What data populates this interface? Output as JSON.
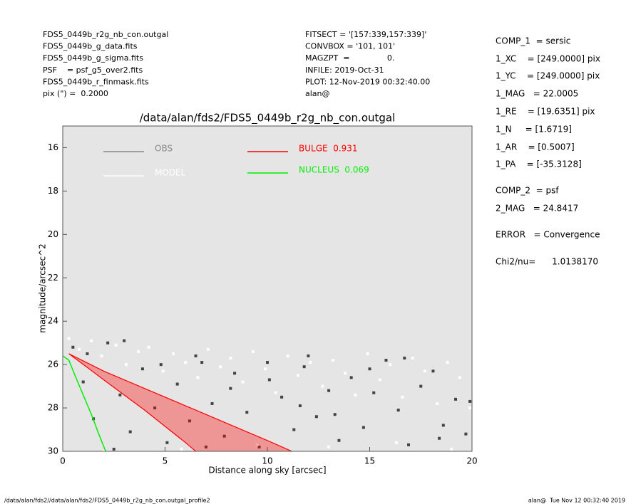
{
  "header": {
    "files": [
      "FDS5_0449b_r2g_nb_con.outgal",
      "FDS5_0449b_g_data.fits",
      "FDS5_0449b_g_sigma.fits",
      "PSF    = psf_g5_over2.fits",
      "FDS5_0449b_r_finmask.fits",
      "pix (\") =  0.2000"
    ],
    "settings": [
      "FITSECT = '[157:339,157:339]'",
      "CONVBOX = '101, 101'",
      "MAGZPT  =               0.",
      "INFILE: 2019-Oct-31",
      "PLOT: 12-Nov-2019 00:32:40.00",
      "alan@"
    ]
  },
  "fit_results": [
    "COMP_1  = sersic",
    "1_XC    = [249.0000] pix",
    "1_YC    = [249.0000] pix",
    "1_MAG   = 22.0005",
    "1_RE    = [19.6351] pix",
    "1_N     = [1.6719]",
    "1_AR    = [0.5007]",
    "1_PA    = [-35.3128]",
    "COMP_2  = psf",
    "2_MAG   = 24.8417",
    "ERROR   = Convergence",
    "Chi2/nu=      1.0138170"
  ],
  "footer": {
    "left": "/data/alan/fds2//data/alan/fds2/FDS5_0449b_r2g_nb_con.outgal_profile2",
    "right": "alan@  Tue Nov 12 00:32:40 2019"
  },
  "chart_data": {
    "type": "scatter",
    "title": "/data/alan/fds2/FDS5_0449b_r2g_nb_con.outgal",
    "x_label": "Distance along sky [arcsec]",
    "y_label": "magnitude/arcsec^2",
    "xlim": [
      0,
      20
    ],
    "ylim": [
      30,
      15
    ],
    "xticks": [
      0,
      5,
      10,
      15,
      20
    ],
    "yticks": [
      16,
      18,
      20,
      22,
      24,
      26,
      28,
      30
    ],
    "series": [
      {
        "name": "OBS",
        "color": "#8a8a8a",
        "point_color": "#444444",
        "x": [
          0.5,
          1.0,
          1.5,
          2.2,
          2.8,
          3.3,
          3.9,
          4.5,
          5.1,
          5.6,
          6.2,
          6.8,
          7.3,
          7.9,
          8.4,
          9.0,
          9.6,
          10.1,
          10.7,
          11.3,
          11.8,
          12.4,
          13.0,
          13.5,
          14.1,
          14.7,
          15.2,
          15.8,
          16.4,
          16.9,
          17.5,
          18.1,
          18.6,
          19.2,
          19.7,
          1.2,
          3.0,
          4.8,
          6.5,
          8.2,
          10.0,
          11.6,
          13.3,
          15.0,
          16.7,
          18.4,
          19.9,
          2.5,
          7.0,
          12.0
        ],
        "values": [
          25.2,
          26.8,
          28.5,
          25.0,
          27.4,
          29.1,
          26.2,
          28.0,
          29.6,
          26.9,
          28.6,
          25.9,
          27.8,
          29.3,
          26.4,
          28.2,
          29.8,
          26.7,
          27.5,
          29.0,
          26.1,
          28.4,
          27.2,
          29.5,
          26.6,
          28.9,
          27.3,
          25.8,
          28.1,
          29.7,
          27.0,
          26.3,
          28.8,
          27.6,
          29.2,
          25.5,
          24.9,
          26.0,
          25.6,
          27.1,
          25.9,
          27.9,
          28.3,
          26.2,
          25.7,
          29.4,
          27.7,
          29.9,
          29.8,
          25.6
        ]
      },
      {
        "name": "MODEL",
        "color": "#ffffff",
        "point_color": "#ffffff",
        "x": [
          0.3,
          0.8,
          1.4,
          1.9,
          2.6,
          3.1,
          3.7,
          4.2,
          4.9,
          5.4,
          6.0,
          6.6,
          7.1,
          7.7,
          8.2,
          8.8,
          9.3,
          9.9,
          10.4,
          11.0,
          11.5,
          12.1,
          12.7,
          13.2,
          13.8,
          14.3,
          14.9,
          15.5,
          16.0,
          16.6,
          17.1,
          17.7,
          18.3,
          18.8,
          19.4,
          19.9,
          2.0,
          5.8,
          9.5,
          13.0,
          16.3,
          19.0
        ],
        "values": [
          24.8,
          25.3,
          24.9,
          25.6,
          25.1,
          26.0,
          25.4,
          25.2,
          26.3,
          25.5,
          25.9,
          26.6,
          25.3,
          26.1,
          25.7,
          26.8,
          25.4,
          26.2,
          27.3,
          25.6,
          26.5,
          25.9,
          27.0,
          25.8,
          26.4,
          27.4,
          25.5,
          26.7,
          26.0,
          27.5,
          25.7,
          26.3,
          27.8,
          25.9,
          26.6,
          28.0,
          30.0,
          29.9,
          29.7,
          29.8,
          29.6,
          29.9
        ]
      },
      {
        "name": "BULGE  0.931",
        "color": "#ff0000",
        "style": "band",
        "x": [
          0.3,
          2,
          4,
          6,
          6.5,
          8,
          10,
          11.2
        ],
        "values": [
          25.5,
          26.3,
          27.1,
          27.9,
          28.1,
          28.7,
          29.5,
          30
        ],
        "values_inner": [
          25.5,
          26.7,
          28.1,
          29.6,
          30,
          null,
          null,
          null
        ]
      },
      {
        "name": "NUCLEUS  0.069",
        "color": "#00ee00",
        "style": "line",
        "x": [
          0,
          0.3,
          0.6,
          1,
          1.4,
          1.8,
          2.1
        ],
        "values": [
          25.6,
          25.8,
          26.5,
          27.4,
          28.3,
          29.3,
          30
        ]
      }
    ]
  }
}
